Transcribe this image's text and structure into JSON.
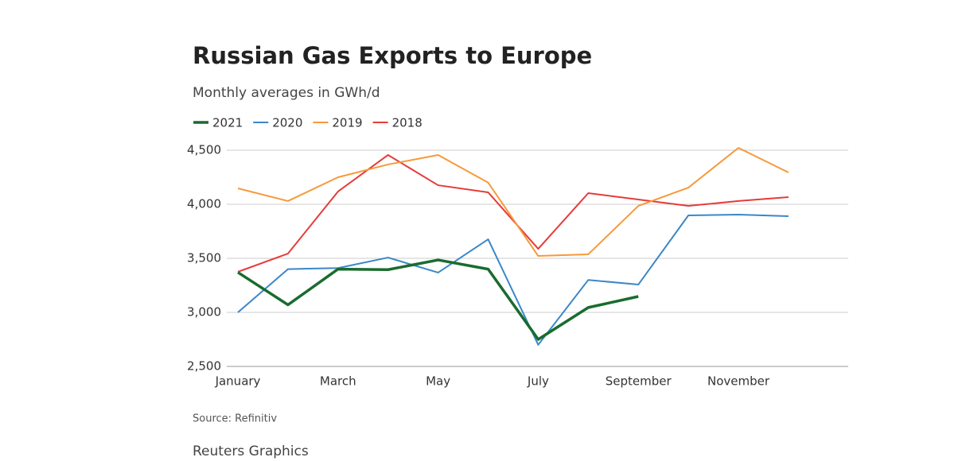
{
  "chart_data": {
    "type": "line",
    "title": "Russian Gas Exports to Europe",
    "subtitle": "Monthly averages in GWh/d",
    "source": "Source: Refinitiv",
    "credit": "Reuters Graphics",
    "categories": [
      "January",
      null,
      "March",
      null,
      "May",
      null,
      "July",
      null,
      "September",
      null,
      "November",
      null
    ],
    "series": [
      {
        "name": "2021",
        "color": "#1a6b2f",
        "values": [
          3370,
          3070,
          3400,
          3395,
          3485,
          3400,
          2750,
          3045,
          3147,
          null,
          null,
          null
        ]
      },
      {
        "name": "2020",
        "color": "#3a87c8",
        "values": [
          3000,
          3400,
          3410,
          3507,
          3368,
          3676,
          2700,
          3300,
          3257,
          3897,
          3904,
          3890
        ]
      },
      {
        "name": "2019",
        "color": "#f7993a",
        "values": [
          4147,
          4030,
          4250,
          4368,
          4456,
          4200,
          3522,
          3537,
          3985,
          4154,
          4522,
          4294
        ]
      },
      {
        "name": "2018",
        "color": "#e53c3a",
        "values": [
          3375,
          3544,
          4118,
          4456,
          4176,
          4110,
          3588,
          4103,
          4044,
          3985,
          4030,
          4066
        ]
      }
    ],
    "ylim": [
      2500,
      4500
    ],
    "yticks": [
      {
        "value": 2500,
        "label": "2,500"
      },
      {
        "value": 3000,
        "label": "3,000"
      },
      {
        "value": 3500,
        "label": "3,500"
      },
      {
        "value": 4000,
        "label": "4,000"
      },
      {
        "value": 4500,
        "label": "4,500"
      }
    ],
    "grid": true
  }
}
